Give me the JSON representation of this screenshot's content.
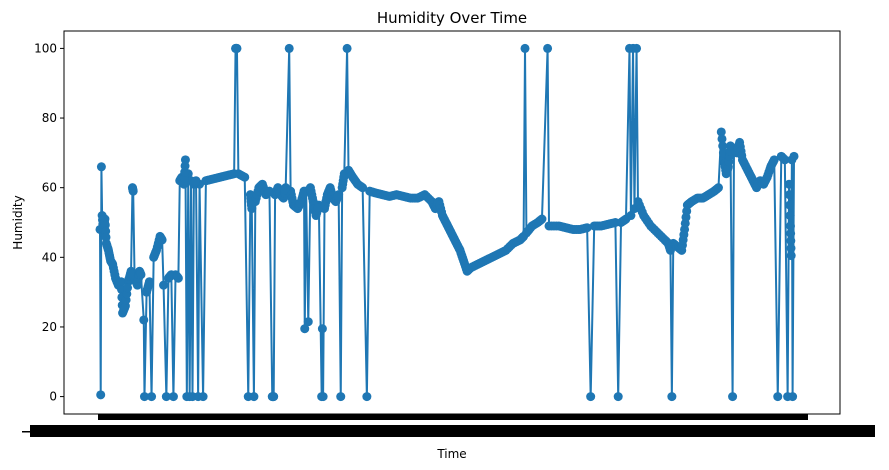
{
  "chart_data": {
    "type": "line",
    "title": "Humidity Over Time",
    "xlabel": "Time",
    "ylabel": "Humidity",
    "ylim": [
      -5,
      105
    ],
    "yticks": [
      0,
      20,
      40,
      60,
      80,
      100
    ],
    "grid": false,
    "legend": "none",
    "marker": "circle",
    "x_tick_labels_overlapping": true,
    "series": [
      {
        "color": "#1f77b4",
        "points": [
          [
            0.0,
            48.0
          ],
          [
            0.001,
            0.5
          ],
          [
            0.002,
            66.0
          ],
          [
            0.003,
            52.0
          ],
          [
            0.005,
            47.0
          ],
          [
            0.007,
            51.0
          ],
          [
            0.009,
            44.0
          ],
          [
            0.012,
            42.0
          ],
          [
            0.015,
            39.0
          ],
          [
            0.018,
            38.0
          ],
          [
            0.022,
            34.0
          ],
          [
            0.026,
            32.0
          ],
          [
            0.03,
            33.0
          ],
          [
            0.032,
            24.0
          ],
          [
            0.036,
            26.0
          ],
          [
            0.04,
            33.0
          ],
          [
            0.044,
            36.0
          ],
          [
            0.046,
            60.0
          ],
          [
            0.047,
            59.0
          ],
          [
            0.049,
            34.0
          ],
          [
            0.053,
            32.0
          ],
          [
            0.056,
            36.0
          ],
          [
            0.058,
            35.0
          ],
          [
            0.062,
            22.0
          ],
          [
            0.063,
            0.0
          ],
          [
            0.066,
            30.0
          ],
          [
            0.07,
            33.0
          ],
          [
            0.073,
            0.0
          ],
          [
            0.076,
            40.0
          ],
          [
            0.08,
            42.0
          ],
          [
            0.085,
            46.0
          ],
          [
            0.088,
            45.0
          ],
          [
            0.09,
            32.0
          ],
          [
            0.094,
            0.0
          ],
          [
            0.097,
            34.0
          ],
          [
            0.101,
            35.0
          ],
          [
            0.104,
            0.0
          ],
          [
            0.107,
            35.0
          ],
          [
            0.111,
            34.0
          ],
          [
            0.113,
            62.0
          ],
          [
            0.116,
            63.0
          ],
          [
            0.119,
            61.0
          ],
          [
            0.121,
            68.0
          ],
          [
            0.123,
            0.0
          ],
          [
            0.125,
            64.0
          ],
          [
            0.127,
            0.0
          ],
          [
            0.129,
            62.0
          ],
          [
            0.131,
            0.0
          ],
          [
            0.133,
            61.0
          ],
          [
            0.136,
            62.0
          ],
          [
            0.139,
            0.0
          ],
          [
            0.141,
            61.0
          ],
          [
            0.146,
            0.0
          ],
          [
            0.15,
            62.0
          ],
          [
            0.16,
            62.5
          ],
          [
            0.17,
            63.0
          ],
          [
            0.18,
            63.5
          ],
          [
            0.19,
            64.0
          ],
          [
            0.192,
            100.0
          ],
          [
            0.194,
            100.0
          ],
          [
            0.196,
            64.0
          ],
          [
            0.205,
            63.0
          ],
          [
            0.21,
            0.0
          ],
          [
            0.213,
            58.0
          ],
          [
            0.215,
            54.0
          ],
          [
            0.218,
            0.0
          ],
          [
            0.22,
            56.0
          ],
          [
            0.225,
            60.0
          ],
          [
            0.23,
            61.0
          ],
          [
            0.235,
            58.0
          ],
          [
            0.24,
            59.0
          ],
          [
            0.244,
            0.0
          ],
          [
            0.246,
            0.0
          ],
          [
            0.248,
            58.0
          ],
          [
            0.252,
            60.0
          ],
          [
            0.256,
            58.0
          ],
          [
            0.26,
            57.0
          ],
          [
            0.263,
            60.0
          ],
          [
            0.268,
            100.0
          ],
          [
            0.27,
            59.0
          ],
          [
            0.274,
            55.0
          ],
          [
            0.28,
            54.0
          ],
          [
            0.285,
            56.0
          ],
          [
            0.289,
            59.0
          ],
          [
            0.29,
            19.5
          ],
          [
            0.292,
            59.0
          ],
          [
            0.295,
            21.5
          ],
          [
            0.298,
            60.0
          ],
          [
            0.302,
            56.0
          ],
          [
            0.306,
            52.0
          ],
          [
            0.31,
            55.0
          ],
          [
            0.314,
            0.0
          ],
          [
            0.315,
            19.5
          ],
          [
            0.316,
            0.0
          ],
          [
            0.318,
            54.0
          ],
          [
            0.322,
            58.0
          ],
          [
            0.326,
            60.0
          ],
          [
            0.33,
            57.0
          ],
          [
            0.334,
            56.0
          ],
          [
            0.338,
            58.0
          ],
          [
            0.341,
            0.0
          ],
          [
            0.343,
            60.0
          ],
          [
            0.346,
            64.0
          ],
          [
            0.35,
            100.0
          ],
          [
            0.352,
            65.0
          ],
          [
            0.358,
            63.0
          ],
          [
            0.365,
            61.0
          ],
          [
            0.372,
            60.0
          ],
          [
            0.378,
            0.0
          ],
          [
            0.382,
            59.0
          ],
          [
            0.39,
            58.5
          ],
          [
            0.4,
            58.0
          ],
          [
            0.41,
            57.5
          ],
          [
            0.42,
            58.0
          ],
          [
            0.43,
            57.5
          ],
          [
            0.44,
            57.0
          ],
          [
            0.45,
            57.0
          ],
          [
            0.46,
            58.0
          ],
          [
            0.47,
            56.0
          ],
          [
            0.475,
            54.0
          ],
          [
            0.48,
            56.0
          ],
          [
            0.485,
            52.0
          ],
          [
            0.49,
            50.0
          ],
          [
            0.495,
            48.0
          ],
          [
            0.5,
            46.0
          ],
          [
            0.505,
            44.0
          ],
          [
            0.51,
            42.0
          ],
          [
            0.515,
            39.0
          ],
          [
            0.52,
            36.0
          ],
          [
            0.525,
            37.0
          ],
          [
            0.535,
            38.0
          ],
          [
            0.545,
            39.0
          ],
          [
            0.555,
            40.0
          ],
          [
            0.565,
            41.0
          ],
          [
            0.575,
            42.0
          ],
          [
            0.585,
            44.0
          ],
          [
            0.595,
            45.0
          ],
          [
            0.6,
            46.0
          ],
          [
            0.602,
            100.0
          ],
          [
            0.604,
            47.0
          ],
          [
            0.612,
            49.0
          ],
          [
            0.62,
            50.0
          ],
          [
            0.626,
            51.0
          ],
          [
            0.634,
            100.0
          ],
          [
            0.636,
            49.0
          ],
          [
            0.65,
            49.0
          ],
          [
            0.66,
            48.5
          ],
          [
            0.67,
            48.0
          ],
          [
            0.68,
            48.0
          ],
          [
            0.69,
            48.5
          ],
          [
            0.695,
            0.0
          ],
          [
            0.7,
            49.0
          ],
          [
            0.71,
            49.0
          ],
          [
            0.72,
            49.5
          ],
          [
            0.73,
            50.0
          ],
          [
            0.734,
            0.0
          ],
          [
            0.738,
            50.0
          ],
          [
            0.745,
            51.0
          ],
          [
            0.75,
            100.0
          ],
          [
            0.752,
            52.0
          ],
          [
            0.755,
            100.0
          ],
          [
            0.757,
            54.0
          ],
          [
            0.76,
            100.0
          ],
          [
            0.762,
            56.0
          ],
          [
            0.77,
            52.0
          ],
          [
            0.78,
            49.0
          ],
          [
            0.79,
            47.0
          ],
          [
            0.8,
            45.0
          ],
          [
            0.805,
            44.0
          ],
          [
            0.808,
            42.0
          ],
          [
            0.81,
            0.0
          ],
          [
            0.812,
            44.0
          ],
          [
            0.818,
            43.0
          ],
          [
            0.824,
            42.0
          ],
          [
            0.828,
            48.0
          ],
          [
            0.832,
            55.0
          ],
          [
            0.838,
            56.0
          ],
          [
            0.846,
            57.0
          ],
          [
            0.854,
            57.0
          ],
          [
            0.862,
            58.0
          ],
          [
            0.87,
            59.0
          ],
          [
            0.876,
            60.0
          ],
          [
            0.88,
            76.0
          ],
          [
            0.884,
            68.0
          ],
          [
            0.887,
            64.0
          ],
          [
            0.89,
            66.0
          ],
          [
            0.893,
            72.0
          ],
          [
            0.896,
            0.0
          ],
          [
            0.898,
            71.0
          ],
          [
            0.902,
            70.0
          ],
          [
            0.906,
            73.0
          ],
          [
            0.91,
            68.0
          ],
          [
            0.915,
            66.0
          ],
          [
            0.92,
            64.0
          ],
          [
            0.925,
            62.0
          ],
          [
            0.93,
            60.0
          ],
          [
            0.935,
            62.0
          ],
          [
            0.94,
            61.0
          ],
          [
            0.945,
            63.0
          ],
          [
            0.95,
            66.0
          ],
          [
            0.955,
            68.0
          ],
          [
            0.96,
            0.0
          ],
          [
            0.965,
            69.0
          ],
          [
            0.97,
            68.0
          ],
          [
            0.974,
            0.0
          ],
          [
            0.976,
            61.0
          ],
          [
            0.978,
            49.0
          ],
          [
            0.979,
            40.5
          ],
          [
            0.98,
            68.0
          ],
          [
            0.981,
            0.0
          ],
          [
            0.983,
            69.0
          ]
        ]
      }
    ]
  }
}
